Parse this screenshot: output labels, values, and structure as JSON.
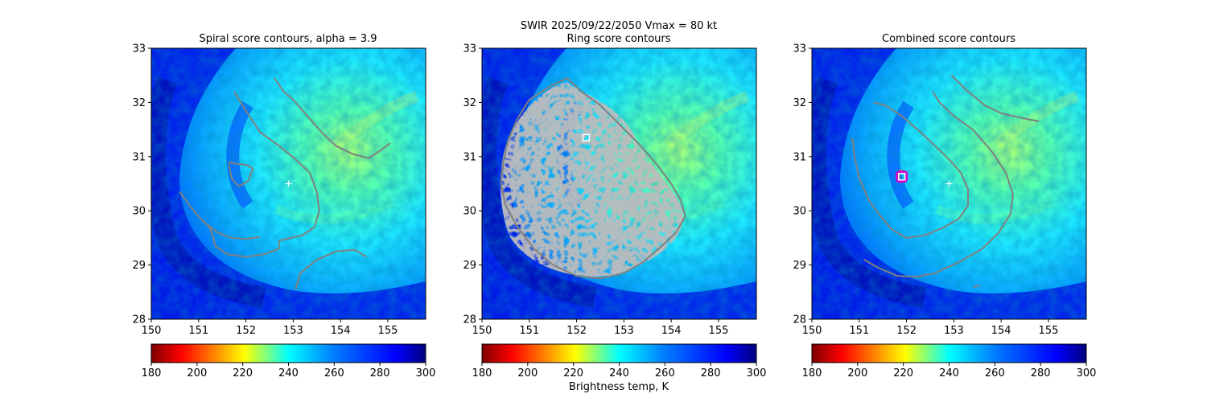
{
  "figure": {
    "suptitle_line1": "SWIR  2025/09/22/2050    Vmax = 80 kt",
    "colorbar_label": "Brightness temp, K"
  },
  "colors": {
    "contour": "#808080",
    "center_marker": "#ffffff",
    "combined_marker_edge": "#d000d0"
  },
  "chart_data": [
    {
      "type": "heatmap",
      "title": "Spiral score contours, alpha =  3.9",
      "xlim": [
        150,
        155.8
      ],
      "ylim": [
        28,
        33
      ],
      "xticks": [
        150,
        151,
        152,
        153,
        154,
        155
      ],
      "yticks": [
        28,
        29,
        30,
        31,
        32,
        33
      ],
      "colorbar": {
        "colormap": "jet_r",
        "range": [
          180,
          300
        ],
        "ticks": [
          180,
          200,
          220,
          240,
          260,
          280,
          300
        ]
      },
      "markers": [
        {
          "kind": "plus",
          "lon": 152.9,
          "lat": 30.5,
          "color": "#ffffff"
        }
      ],
      "contours": [
        {
          "name": "spiral-contour-1",
          "points": [
            [
              152.6,
              32.45
            ],
            [
              152.8,
              32.2
            ],
            [
              153.0,
              32.05
            ],
            [
              153.3,
              31.75
            ],
            [
              153.6,
              31.45
            ],
            [
              153.9,
              31.2
            ],
            [
              154.25,
              31.05
            ],
            [
              154.6,
              30.97
            ],
            [
              154.9,
              31.15
            ],
            [
              155.05,
              31.25
            ]
          ]
        },
        {
          "name": "spiral-contour-2",
          "points": [
            [
              151.75,
              32.2
            ],
            [
              152.0,
              31.85
            ],
            [
              152.3,
              31.45
            ],
            [
              152.7,
              31.2
            ],
            [
              153.05,
              30.95
            ],
            [
              153.35,
              30.7
            ],
            [
              153.5,
              30.35
            ],
            [
              153.55,
              30.0
            ],
            [
              153.45,
              29.7
            ],
            [
              153.2,
              29.55
            ],
            [
              152.95,
              29.5
            ],
            [
              152.7,
              29.45
            ],
            [
              152.7,
              29.3
            ],
            [
              152.4,
              29.2
            ],
            [
              152.0,
              29.15
            ],
            [
              151.6,
              29.2
            ],
            [
              151.35,
              29.35
            ],
            [
              151.3,
              29.55
            ],
            [
              151.2,
              29.75
            ]
          ]
        },
        {
          "name": "spiral-contour-3",
          "points": [
            [
              150.6,
              30.35
            ],
            [
              150.85,
              30.05
            ],
            [
              151.1,
              29.8
            ],
            [
              151.4,
              29.6
            ],
            [
              151.7,
              29.5
            ],
            [
              152.0,
              29.48
            ],
            [
              152.3,
              29.52
            ]
          ]
        },
        {
          "name": "spiral-contour-4",
          "points": [
            [
              153.05,
              28.55
            ],
            [
              153.15,
              28.85
            ],
            [
              153.5,
              29.1
            ],
            [
              153.9,
              29.25
            ],
            [
              154.3,
              29.28
            ],
            [
              154.55,
              29.15
            ]
          ]
        },
        {
          "name": "spiral-contour-5",
          "points": [
            [
              151.65,
              30.9
            ],
            [
              151.8,
              30.87
            ],
            [
              152.0,
              30.85
            ],
            [
              152.15,
              30.78
            ],
            [
              152.05,
              30.55
            ],
            [
              151.85,
              30.45
            ],
            [
              151.7,
              30.6
            ],
            [
              151.65,
              30.8
            ],
            [
              151.65,
              30.9
            ]
          ]
        }
      ]
    },
    {
      "type": "heatmap",
      "title": "Ring score contours",
      "xlim": [
        150,
        155.8
      ],
      "ylim": [
        28,
        33
      ],
      "xticks": [
        150,
        151,
        152,
        153,
        154,
        155
      ],
      "yticks": [
        28,
        29,
        30,
        31,
        32,
        33
      ],
      "colorbar": {
        "colormap": "jet_r",
        "range": [
          180,
          300
        ],
        "ticks": [
          180,
          200,
          220,
          240,
          260,
          280,
          300
        ]
      },
      "markers": [
        {
          "kind": "square",
          "lon": 152.2,
          "lat": 31.35,
          "color": "#ffffff"
        }
      ],
      "contours": [
        {
          "name": "ring-contour-outer",
          "points": [
            [
              151.45,
              32.3
            ],
            [
              151.8,
              32.45
            ],
            [
              152.1,
              32.2
            ],
            [
              152.5,
              31.95
            ],
            [
              152.9,
              31.6
            ],
            [
              153.3,
              31.25
            ],
            [
              153.7,
              30.85
            ],
            [
              154.0,
              30.5
            ],
            [
              154.2,
              30.2
            ],
            [
              154.3,
              29.9
            ],
            [
              154.1,
              29.6
            ],
            [
              153.8,
              29.35
            ],
            [
              153.4,
              29.05
            ],
            [
              153.0,
              28.85
            ],
            [
              152.5,
              28.75
            ],
            [
              152.0,
              28.8
            ],
            [
              151.5,
              29.0
            ],
            [
              151.1,
              29.3
            ],
            [
              150.75,
              29.7
            ],
            [
              150.5,
              30.1
            ],
            [
              150.4,
              30.5
            ],
            [
              150.45,
              30.9
            ],
            [
              150.55,
              31.3
            ],
            [
              150.75,
              31.7
            ],
            [
              151.0,
              32.05
            ],
            [
              151.45,
              32.3
            ]
          ]
        }
      ]
    },
    {
      "type": "heatmap",
      "title": "Combined score contours",
      "xlim": [
        150,
        155.8
      ],
      "ylim": [
        28,
        33
      ],
      "xticks": [
        150,
        151,
        152,
        153,
        154,
        155
      ],
      "yticks": [
        28,
        29,
        30,
        31,
        32,
        33
      ],
      "colorbar": {
        "colormap": "jet_r",
        "range": [
          180,
          300
        ],
        "ticks": [
          180,
          200,
          220,
          240,
          260,
          280,
          300
        ]
      },
      "markers": [
        {
          "kind": "plus",
          "lon": 152.9,
          "lat": 30.5,
          "color": "#ffffff"
        },
        {
          "kind": "square",
          "lon": 151.9,
          "lat": 30.63,
          "color": "#ffffff"
        }
      ],
      "contours": [
        {
          "name": "combined-contour-1",
          "points": [
            [
              152.95,
              32.5
            ],
            [
              153.3,
              32.2
            ],
            [
              153.65,
              31.95
            ],
            [
              154.0,
              31.8
            ],
            [
              154.4,
              31.72
            ],
            [
              154.8,
              31.65
            ]
          ]
        },
        {
          "name": "combined-contour-2",
          "points": [
            [
              152.55,
              32.2
            ],
            [
              152.7,
              32.0
            ],
            [
              153.0,
              31.75
            ],
            [
              153.4,
              31.5
            ],
            [
              153.8,
              31.1
            ],
            [
              154.1,
              30.7
            ],
            [
              154.25,
              30.3
            ],
            [
              154.2,
              29.95
            ],
            [
              153.95,
              29.6
            ],
            [
              153.6,
              29.3
            ],
            [
              153.1,
              29.05
            ],
            [
              152.6,
              28.85
            ],
            [
              152.2,
              28.78
            ],
            [
              151.8,
              28.8
            ],
            [
              151.4,
              28.95
            ],
            [
              151.1,
              29.1
            ]
          ]
        },
        {
          "name": "combined-contour-3",
          "points": [
            [
              150.85,
              31.35
            ],
            [
              150.9,
              31.0
            ],
            [
              151.0,
              30.6
            ],
            [
              151.2,
              30.2
            ],
            [
              151.45,
              29.9
            ],
            [
              151.7,
              29.65
            ],
            [
              152.0,
              29.5
            ],
            [
              152.4,
              29.55
            ],
            [
              152.8,
              29.7
            ],
            [
              153.1,
              29.85
            ],
            [
              153.3,
              30.1
            ],
            [
              153.3,
              30.4
            ],
            [
              153.15,
              30.7
            ],
            [
              152.9,
              30.95
            ],
            [
              152.6,
              31.2
            ],
            [
              152.3,
              31.45
            ],
            [
              151.9,
              31.75
            ],
            [
              151.55,
              31.95
            ],
            [
              151.3,
              32.0
            ]
          ]
        },
        {
          "name": "combined-contour-4",
          "points": [
            [
              151.85,
              30.52
            ],
            [
              151.85,
              30.75
            ],
            [
              152.0,
              30.72
            ],
            [
              151.95,
              30.55
            ],
            [
              151.85,
              30.52
            ]
          ]
        },
        {
          "name": "combined-contour-5",
          "points": [
            [
              153.4,
              28.6
            ],
            [
              153.55,
              28.62
            ]
          ]
        }
      ]
    }
  ]
}
